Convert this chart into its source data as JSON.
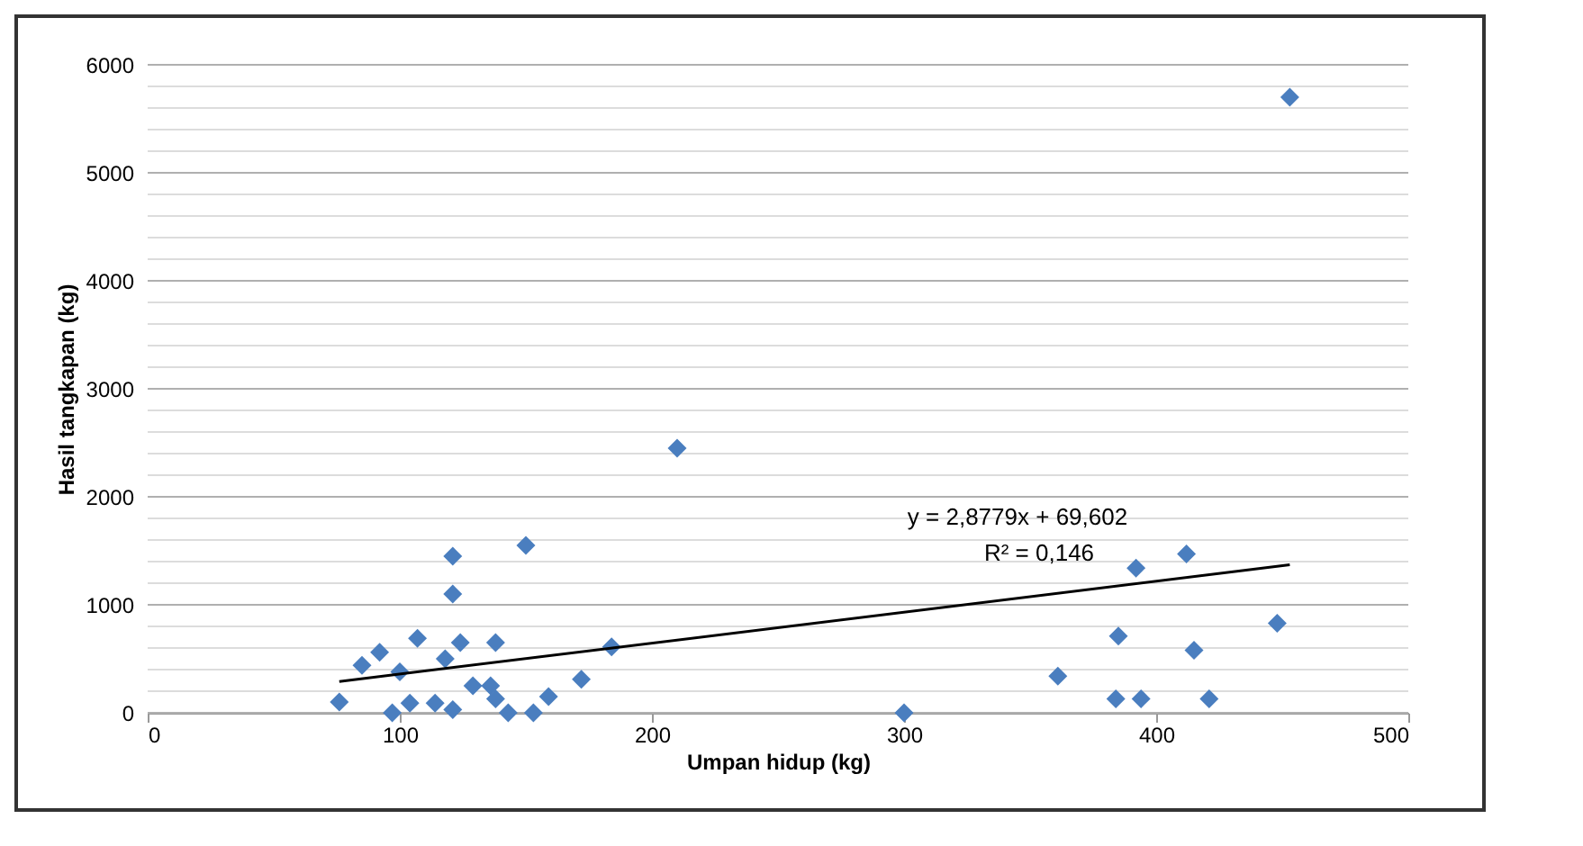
{
  "chart_data": {
    "type": "scatter",
    "xlabel": "Umpan hidup (kg)",
    "ylabel": "Hasil tangkapan (kg)",
    "annotations": [
      "y = 2,8779x + 69,602",
      "R² = 0,146"
    ],
    "xlim": [
      0,
      500
    ],
    "xticks": [
      0,
      100,
      200,
      300,
      400,
      500
    ],
    "ylim": [
      0,
      6000
    ],
    "yticks": [
      0,
      {
        "value": 200,
        "label": null
      },
      {
        "value": 400,
        "label": null
      },
      {
        "value": 600,
        "label": null
      },
      {
        "value": 800,
        "label": null
      },
      1000,
      {
        "value": 1200,
        "label": null
      },
      {
        "value": 1400,
        "label": null
      },
      {
        "value": 1600,
        "label": null
      },
      {
        "value": 1800,
        "label": null
      },
      2000,
      {
        "value": 2200,
        "label": null
      },
      {
        "value": 2400,
        "label": null
      },
      {
        "value": 2600,
        "label": null
      },
      {
        "value": 2800,
        "label": null
      },
      3000,
      {
        "value": 3200,
        "label": null
      },
      {
        "value": 3400,
        "label": null
      },
      {
        "value": 3600,
        "label": null
      },
      {
        "value": 3800,
        "label": null
      },
      4000,
      {
        "value": 4200,
        "label": null
      },
      {
        "value": 4400,
        "label": null
      },
      {
        "value": 4600,
        "label": null
      },
      {
        "value": 4800,
        "label": null
      },
      5000,
      {
        "value": 5200,
        "label": null
      },
      {
        "value": 5400,
        "label": null
      },
      {
        "value": 5600,
        "label": null
      },
      {
        "value": 5800,
        "label": null
      },
      6000
    ],
    "grid": "y",
    "marker": "diamond",
    "series": [
      {
        "color": "#4a7ebf",
        "x": [
          76,
          121,
          121,
          150,
          210,
          184,
          172,
          138,
          85,
          92,
          100,
          107,
          97,
          104,
          114,
          121,
          129,
          118,
          136,
          143,
          153,
          159,
          138,
          124,
          300,
          361,
          384,
          394,
          421,
          385,
          415,
          448,
          392,
          412,
          453
        ],
        "values": [
          100,
          1450,
          1100,
          1550,
          2450,
          610,
          310,
          650,
          440,
          560,
          380,
          690,
          0,
          90,
          90,
          30,
          250,
          500,
          250,
          0,
          0,
          150,
          130,
          650,
          0,
          340,
          130,
          130,
          130,
          710,
          580,
          830,
          1340,
          1470,
          5700
        ]
      },
      {
        "type": "line",
        "color": "#000000",
        "line_style": "solid",
        "marker": "none",
        "x": [
          76,
          453
        ],
        "values": [
          290,
          1370
        ]
      }
    ]
  }
}
